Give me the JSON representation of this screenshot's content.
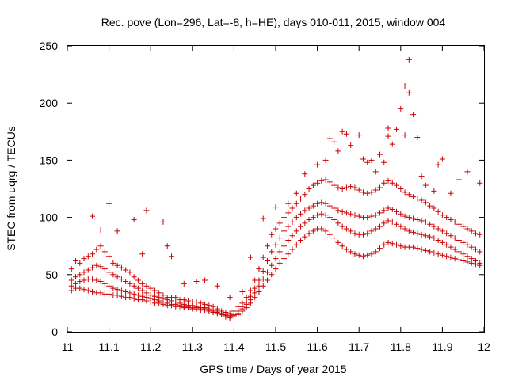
{
  "chart_data": {
    "type": "scatter",
    "title": "Rec. pove (Lon=296, Lat=-8, h=HE), days 010-011, 2015, window 004",
    "xlabel": "GPS time / Days of year 2015",
    "ylabel": "STEC from uqrg / TECUs",
    "xlim": [
      11,
      12
    ],
    "ylim": [
      0,
      250
    ],
    "xticks": [
      "11",
      "11.1",
      "11.2",
      "11.3",
      "11.4",
      "11.5",
      "11.6",
      "11.7",
      "11.8",
      "11.9",
      "12"
    ],
    "yticks": [
      "0",
      "50",
      "100",
      "150",
      "200",
      "250"
    ],
    "grid": false,
    "legend": "none",
    "marker": "plus",
    "color": "#cc0000",
    "series": [
      {
        "x": [
          11.01,
          11.02,
          11.03,
          11.04,
          11.05,
          11.06,
          11.07,
          11.08,
          11.09,
          11.1,
          11.11,
          11.12,
          11.13,
          11.14,
          11.15,
          11.16,
          11.17,
          11.18,
          11.19,
          11.2,
          11.21,
          11.22,
          11.23,
          11.24,
          11.25,
          11.26,
          11.27,
          11.28,
          11.29,
          11.3,
          11.31,
          11.32,
          11.33,
          11.34,
          11.35,
          11.36,
          11.37,
          11.38,
          11.39,
          11.4,
          11.41,
          11.42,
          11.43,
          11.44,
          11.45,
          11.46,
          11.47,
          11.48,
          11.49,
          11.5,
          11.51,
          11.52,
          11.53,
          11.54,
          11.55,
          11.56,
          11.57,
          11.58,
          11.59,
          11.6,
          11.61,
          11.62,
          11.63,
          11.64,
          11.65,
          11.66,
          11.67,
          11.68,
          11.69,
          11.7,
          11.71,
          11.72,
          11.73,
          11.74,
          11.75,
          11.76,
          11.77,
          11.78,
          11.79,
          11.8,
          11.81,
          11.82,
          11.83,
          11.84,
          11.85,
          11.86,
          11.87,
          11.88,
          11.89,
          11.9,
          11.91,
          11.92,
          11.93,
          11.94,
          11.95,
          11.96,
          11.97,
          11.98,
          11.99
        ],
        "y": [
          55,
          62,
          60,
          64,
          66,
          68,
          72,
          75,
          70,
          66,
          60,
          58,
          56,
          54,
          52,
          48,
          45,
          42,
          40,
          38,
          36,
          34,
          32,
          30,
          30,
          30,
          28,
          28,
          27,
          26,
          26,
          25,
          24,
          23,
          22,
          20,
          18,
          17,
          16,
          18,
          22,
          25,
          30,
          36,
          45,
          55,
          65,
          75,
          85,
          90,
          95,
          100,
          104,
          108,
          112,
          116,
          120,
          125,
          128,
          130,
          132,
          133,
          131,
          128,
          126,
          125,
          126,
          127,
          126,
          124,
          122,
          121,
          122,
          124,
          126,
          130,
          132,
          130,
          128,
          125,
          122,
          120,
          118,
          116,
          115,
          113,
          110,
          108,
          105,
          102,
          100,
          98,
          96,
          94,
          92,
          90,
          88,
          86,
          85
        ]
      },
      {
        "x": [
          11.01,
          11.02,
          11.03,
          11.04,
          11.05,
          11.06,
          11.07,
          11.08,
          11.09,
          11.1,
          11.11,
          11.12,
          11.13,
          11.14,
          11.15,
          11.16,
          11.17,
          11.18,
          11.19,
          11.2,
          11.21,
          11.22,
          11.23,
          11.24,
          11.25,
          11.26,
          11.27,
          11.28,
          11.29,
          11.3,
          11.31,
          11.32,
          11.33,
          11.34,
          11.35,
          11.36,
          11.37,
          11.38,
          11.39,
          11.4,
          11.41,
          11.42,
          11.43,
          11.44,
          11.45,
          11.46,
          11.47,
          11.48,
          11.49,
          11.5,
          11.51,
          11.52,
          11.53,
          11.54,
          11.55,
          11.56,
          11.57,
          11.58,
          11.59,
          11.6,
          11.61,
          11.62,
          11.63,
          11.64,
          11.65,
          11.66,
          11.67,
          11.68,
          11.69,
          11.7,
          11.71,
          11.72,
          11.73,
          11.74,
          11.75,
          11.76,
          11.77,
          11.78,
          11.79,
          11.8,
          11.81,
          11.82,
          11.83,
          11.84,
          11.85,
          11.86,
          11.87,
          11.88,
          11.89,
          11.9,
          11.91,
          11.92,
          11.93,
          11.94,
          11.95,
          11.96,
          11.97,
          11.98,
          11.99
        ],
        "y": [
          45,
          48,
          50,
          52,
          54,
          56,
          58,
          57,
          55,
          52,
          50,
          48,
          46,
          44,
          42,
          40,
          38,
          36,
          34,
          32,
          31,
          30,
          29,
          28,
          27,
          26,
          25,
          24,
          23,
          23,
          22,
          21,
          21,
          20,
          19,
          18,
          16,
          15,
          14,
          15,
          18,
          22,
          26,
          31,
          38,
          45,
          53,
          62,
          70,
          76,
          82,
          88,
          92,
          96,
          100,
          103,
          106,
          108,
          110,
          112,
          113,
          112,
          110,
          108,
          106,
          105,
          104,
          103,
          102,
          101,
          100,
          100,
          101,
          102,
          104,
          106,
          108,
          107,
          105,
          103,
          101,
          100,
          99,
          98,
          97,
          96,
          94,
          92,
          90,
          88,
          86,
          84,
          82,
          80,
          78,
          76,
          74,
          72,
          70
        ]
      },
      {
        "x": [
          11.01,
          11.02,
          11.03,
          11.04,
          11.05,
          11.06,
          11.07,
          11.08,
          11.09,
          11.1,
          11.11,
          11.12,
          11.13,
          11.14,
          11.15,
          11.16,
          11.17,
          11.18,
          11.19,
          11.2,
          11.21,
          11.22,
          11.23,
          11.24,
          11.25,
          11.26,
          11.27,
          11.28,
          11.29,
          11.3,
          11.31,
          11.32,
          11.33,
          11.34,
          11.35,
          11.36,
          11.37,
          11.38,
          11.39,
          11.4,
          11.41,
          11.42,
          11.43,
          11.44,
          11.45,
          11.46,
          11.47,
          11.48,
          11.49,
          11.5,
          11.51,
          11.52,
          11.53,
          11.54,
          11.55,
          11.56,
          11.57,
          11.58,
          11.59,
          11.6,
          11.61,
          11.62,
          11.63,
          11.64,
          11.65,
          11.66,
          11.67,
          11.68,
          11.69,
          11.7,
          11.71,
          11.72,
          11.73,
          11.74,
          11.75,
          11.76,
          11.77,
          11.78,
          11.79,
          11.8,
          11.81,
          11.82,
          11.83,
          11.84,
          11.85,
          11.86,
          11.87,
          11.88,
          11.89,
          11.9,
          11.91,
          11.92,
          11.93,
          11.94,
          11.95,
          11.96,
          11.97,
          11.98,
          11.99
        ],
        "y": [
          40,
          42,
          44,
          45,
          46,
          46,
          45,
          44,
          42,
          40,
          38,
          37,
          36,
          35,
          34,
          33,
          32,
          31,
          30,
          29,
          28,
          27,
          26,
          25,
          24,
          24,
          23,
          22,
          22,
          21,
          21,
          20,
          20,
          19,
          18,
          17,
          15,
          14,
          13,
          14,
          16,
          20,
          24,
          28,
          34,
          40,
          46,
          52,
          58,
          64,
          70,
          75,
          80,
          84,
          88,
          92,
          95,
          98,
          100,
          102,
          103,
          102,
          100,
          98,
          95,
          92,
          90,
          88,
          86,
          85,
          85,
          86,
          88,
          90,
          92,
          95,
          97,
          96,
          94,
          92,
          90,
          88,
          87,
          86,
          85,
          84,
          83,
          82,
          80,
          78,
          76,
          74,
          72,
          70,
          68,
          66,
          64,
          62,
          60
        ]
      },
      {
        "x": [
          11.01,
          11.02,
          11.03,
          11.04,
          11.05,
          11.06,
          11.07,
          11.08,
          11.09,
          11.1,
          11.11,
          11.12,
          11.13,
          11.14,
          11.15,
          11.16,
          11.17,
          11.18,
          11.19,
          11.2,
          11.21,
          11.22,
          11.23,
          11.24,
          11.25,
          11.26,
          11.27,
          11.28,
          11.29,
          11.3,
          11.31,
          11.32,
          11.33,
          11.34,
          11.35,
          11.36,
          11.37,
          11.38,
          11.39,
          11.4,
          11.41,
          11.42,
          11.43,
          11.44,
          11.45,
          11.46,
          11.47,
          11.48,
          11.49,
          11.5,
          11.51,
          11.52,
          11.53,
          11.54,
          11.55,
          11.56,
          11.57,
          11.58,
          11.59,
          11.6,
          11.61,
          11.62,
          11.63,
          11.64,
          11.65,
          11.66,
          11.67,
          11.68,
          11.69,
          11.7,
          11.71,
          11.72,
          11.73,
          11.74,
          11.75,
          11.76,
          11.77,
          11.78,
          11.79,
          11.8,
          11.81,
          11.82,
          11.83,
          11.84,
          11.85,
          11.86,
          11.87,
          11.88,
          11.89,
          11.9,
          11.91,
          11.92,
          11.93,
          11.94,
          11.95,
          11.96,
          11.97,
          11.98,
          11.99
        ],
        "y": [
          36,
          38,
          38,
          37,
          36,
          35,
          34,
          34,
          33,
          33,
          32,
          32,
          31,
          30,
          30,
          29,
          28,
          28,
          27,
          26,
          25,
          25,
          24,
          23,
          23,
          22,
          22,
          21,
          21,
          20,
          20,
          19,
          19,
          18,
          17,
          16,
          15,
          13,
          12,
          13,
          15,
          18,
          21,
          25,
          30,
          35,
          40,
          45,
          50,
          55,
          60,
          64,
          68,
          72,
          76,
          80,
          83,
          86,
          88,
          90,
          90,
          88,
          85,
          82,
          78,
          75,
          72,
          70,
          68,
          67,
          66,
          67,
          68,
          70,
          73,
          76,
          78,
          77,
          76,
          75,
          74,
          74,
          74,
          73,
          72,
          71,
          70,
          69,
          68,
          67,
          66,
          65,
          64,
          63,
          62,
          61,
          60,
          59,
          58
        ]
      },
      {
        "x": [
          11.06,
          11.08,
          11.1,
          11.12,
          11.16,
          11.18,
          11.19,
          11.23,
          11.24,
          11.25,
          11.28,
          11.31,
          11.33,
          11.36,
          11.39,
          11.42,
          11.44,
          11.47,
          11.5,
          11.53,
          11.55,
          11.57,
          11.6,
          11.62,
          11.63,
          11.64,
          11.65,
          11.66,
          11.67,
          11.68,
          11.7,
          11.71,
          11.72,
          11.73,
          11.74,
          11.75,
          11.76,
          11.77,
          11.77,
          11.78,
          11.79,
          11.8,
          11.81,
          11.81,
          11.82,
          11.82,
          11.83,
          11.84,
          11.85,
          11.86,
          11.88,
          11.89,
          11.9,
          11.92,
          11.94,
          11.96,
          11.99
        ],
        "y": [
          101,
          89,
          112,
          88,
          98,
          68,
          106,
          96,
          75,
          66,
          42,
          44,
          45,
          40,
          30,
          35,
          65,
          99,
          109,
          112,
          121,
          138,
          146,
          150,
          169,
          166,
          158,
          175,
          173,
          163,
          172,
          151,
          148,
          150,
          140,
          155,
          148,
          178,
          171,
          164,
          177,
          195,
          215,
          172,
          238,
          209,
          190,
          170,
          136,
          128,
          123,
          146,
          151,
          121,
          133,
          140,
          130
        ]
      }
    ]
  }
}
